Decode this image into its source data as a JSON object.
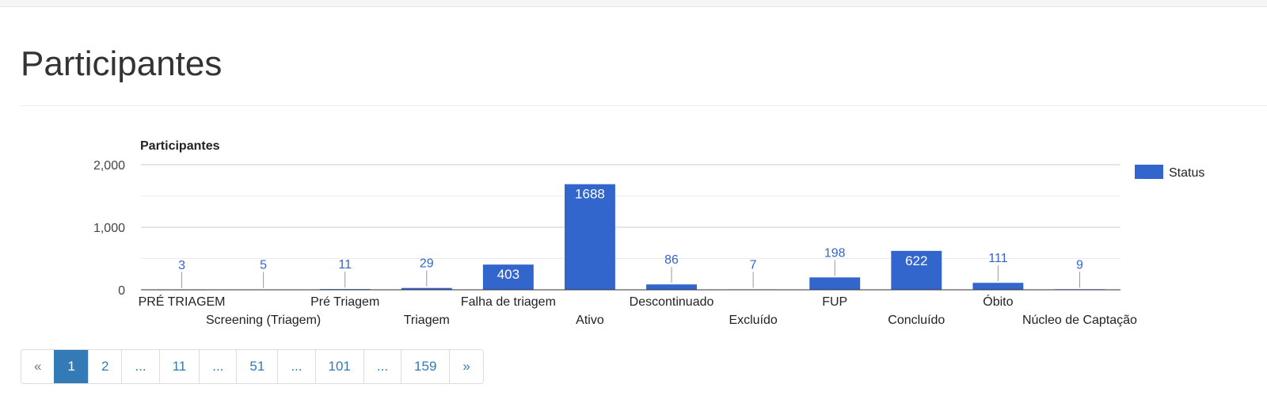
{
  "page": {
    "title": "Participantes"
  },
  "chart_data": {
    "type": "bar",
    "title": "Participantes",
    "categories": [
      "PRÉ TRIAGEM",
      "Screening (Triagem)",
      "Pré Triagem",
      "Triagem",
      "Falha de triagem",
      "Ativo",
      "Descontinuado",
      "Excluído",
      "FUP",
      "Concluído",
      "Óbito",
      "Núcleo de Captação"
    ],
    "series": [
      {
        "name": "Status",
        "values": [
          3,
          5,
          11,
          29,
          403,
          1688,
          86,
          7,
          198,
          622,
          111,
          9
        ]
      }
    ],
    "ylim": [
      0,
      2000
    ],
    "yticks": [
      0,
      1000,
      2000
    ],
    "ytick_labels": [
      "0",
      "1,000",
      "2,000"
    ],
    "grid": true,
    "legend": "right",
    "color": "#3366cc"
  },
  "pagination": {
    "prev": "«",
    "items": [
      {
        "label": "1",
        "active": true
      },
      {
        "label": "2"
      },
      {
        "label": "..."
      },
      {
        "label": "11"
      },
      {
        "label": "..."
      },
      {
        "label": "51"
      },
      {
        "label": "..."
      },
      {
        "label": "101"
      },
      {
        "label": "..."
      },
      {
        "label": "159"
      }
    ],
    "next": "»"
  }
}
